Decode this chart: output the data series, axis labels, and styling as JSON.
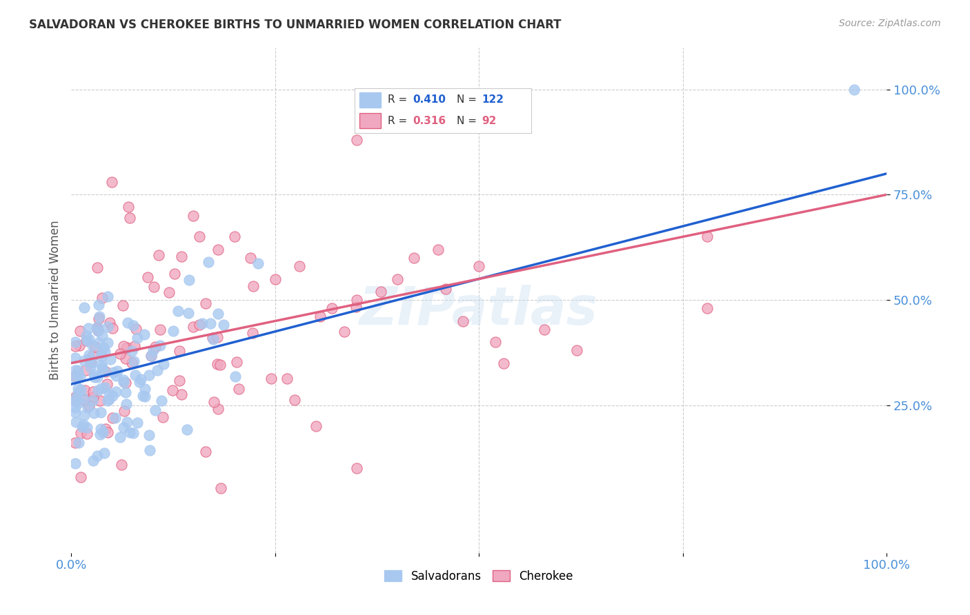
{
  "title": "SALVADORAN VS CHEROKEE BIRTHS TO UNMARRIED WOMEN CORRELATION CHART",
  "source": "Source: ZipAtlas.com",
  "ylabel": "Births to Unmarried Women",
  "watermark": "ZIPatlas",
  "blue_R": "0.410",
  "blue_N": "122",
  "pink_R": "0.316",
  "pink_N": "92",
  "legend_labels": [
    "Salvadorans",
    "Cherokee"
  ],
  "blue_color": "#a8c8f0",
  "blue_edge_color": "#a8c8f0",
  "blue_line_color": "#2060d0",
  "pink_color": "#f0a8c0",
  "pink_edge_color": "#e06080",
  "pink_line_color": "#e06080",
  "ytick_labels": [
    "25.0%",
    "50.0%",
    "75.0%",
    "100.0%"
  ],
  "ytick_values": [
    0.25,
    0.5,
    0.75,
    1.0
  ],
  "xtick_labels": [
    "0.0%",
    "100.0%"
  ],
  "xtick_values": [
    0.0,
    1.0
  ],
  "background_color": "#ffffff",
  "title_color": "#333333",
  "axis_tick_color": "#4a90d9",
  "grid_color": "#cccccc",
  "blue_line_intercept": 0.3,
  "blue_line_slope": 0.5,
  "pink_line_intercept": 0.35,
  "pink_line_slope": 0.4,
  "xlim": [
    0.0,
    1.0
  ],
  "ylim": [
    -0.1,
    1.1
  ]
}
